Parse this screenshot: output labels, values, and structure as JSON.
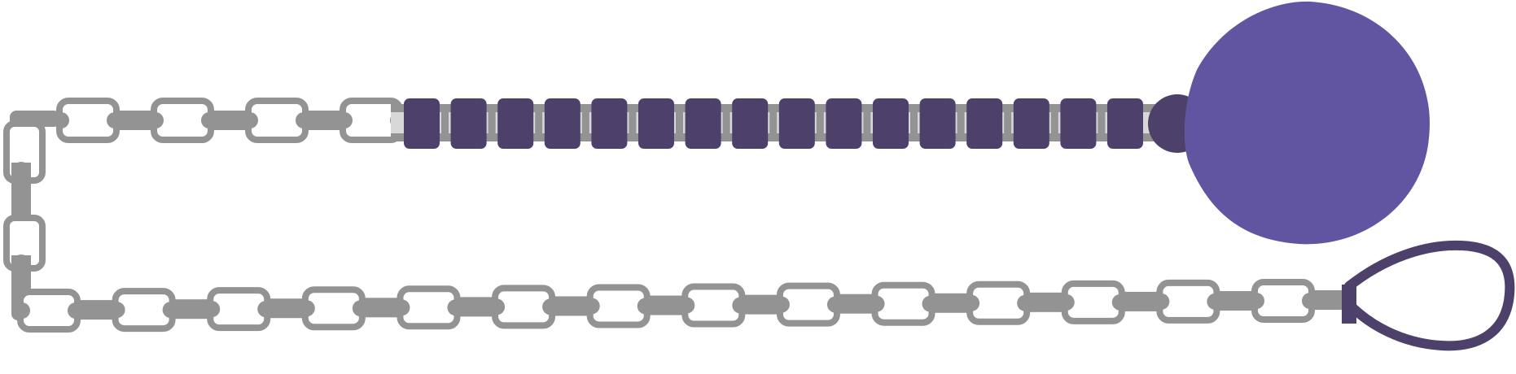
{
  "illustration": {
    "subject": "chain-with-ball-and-loop",
    "colors": {
      "link_stroke": "#939393",
      "link_fill": "#ffffff",
      "sleeve": "#4d416c",
      "ball": "#6155a1",
      "ball_cap": "#4d416c",
      "loop": "#4d416c"
    },
    "counts": {
      "upper_open_links": 4,
      "sleeve_blocks": 16,
      "lower_links": 14
    }
  }
}
